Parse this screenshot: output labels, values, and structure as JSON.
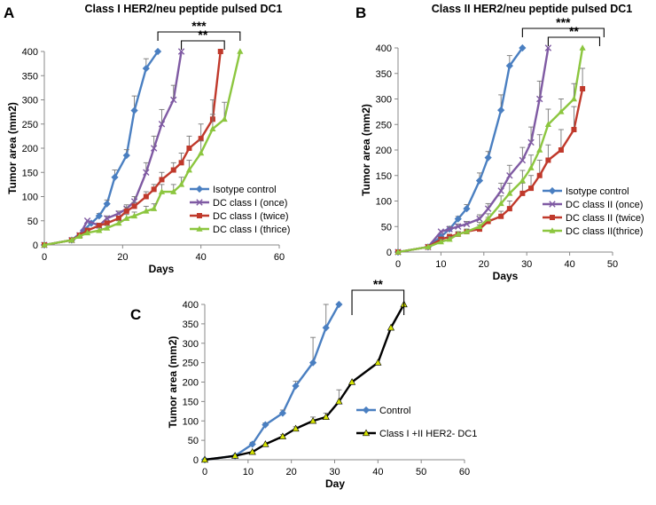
{
  "chart_data": [
    {
      "panel": "A",
      "type": "line",
      "title": "Class I HER2/neu peptide pulsed DC1",
      "xlabel": "Days",
      "ylabel": "Tumor area (mm2)",
      "xlim": [
        0,
        60
      ],
      "ylim": [
        0,
        400
      ],
      "xticks": [
        0,
        20,
        40,
        60
      ],
      "yticks": [
        0,
        50,
        100,
        150,
        200,
        250,
        300,
        350,
        400
      ],
      "legend_position": "right",
      "series": [
        {
          "name": "Isotype control",
          "color": "#4a7fc1",
          "marker": "diamond",
          "x": [
            0,
            7,
            10,
            12,
            14,
            16,
            18,
            21,
            23,
            26,
            29
          ],
          "y": [
            0,
            10,
            30,
            45,
            60,
            85,
            140,
            185,
            278,
            365,
            400
          ],
          "err": [
            0,
            0,
            0,
            0,
            5,
            8,
            15,
            12,
            30,
            20,
            0
          ]
        },
        {
          "name": "DC class I (once)",
          "color": "#7f5aa3",
          "marker": "x",
          "x": [
            0,
            7,
            9,
            11,
            14,
            16,
            19,
            21,
            23,
            26,
            28,
            30,
            33,
            35
          ],
          "y": [
            0,
            10,
            20,
            50,
            40,
            55,
            65,
            75,
            90,
            150,
            200,
            250,
            300,
            400
          ],
          "err": [
            0,
            0,
            0,
            0,
            0,
            5,
            5,
            8,
            10,
            20,
            25,
            30,
            30,
            0
          ]
        },
        {
          "name": "DC class I (twice)",
          "color": "#c0392b",
          "marker": "square",
          "x": [
            0,
            7,
            9,
            11,
            14,
            16,
            19,
            21,
            23,
            26,
            28,
            30,
            33,
            35,
            37,
            40,
            43,
            45
          ],
          "y": [
            0,
            10,
            20,
            30,
            40,
            45,
            55,
            70,
            80,
            100,
            115,
            135,
            155,
            170,
            200,
            220,
            260,
            400
          ],
          "err": [
            0,
            0,
            0,
            5,
            5,
            5,
            5,
            8,
            8,
            10,
            10,
            15,
            15,
            20,
            25,
            30,
            40,
            0
          ]
        },
        {
          "name": "DC class I (thrice)",
          "color": "#8cc63f",
          "marker": "triangle",
          "x": [
            0,
            7,
            9,
            11,
            14,
            16,
            19,
            21,
            23,
            26,
            28,
            30,
            33,
            35,
            37,
            40,
            43,
            46,
            50
          ],
          "y": [
            0,
            10,
            18,
            25,
            30,
            35,
            45,
            55,
            60,
            70,
            75,
            110,
            110,
            125,
            155,
            190,
            240,
            260,
            400
          ],
          "err": [
            0,
            0,
            0,
            0,
            5,
            5,
            5,
            8,
            8,
            10,
            10,
            15,
            15,
            15,
            20,
            25,
            30,
            35,
            0
          ]
        }
      ],
      "significance": [
        {
          "label": "***",
          "x1": 29,
          "x2": 50
        },
        {
          "label": "**",
          "x1": 35,
          "x2": 46
        }
      ]
    },
    {
      "panel": "B",
      "type": "line",
      "title": "Class II HER2/neu peptide pulsed DC1",
      "xlabel": "Days",
      "ylabel": "Tumor area (mm2)",
      "xlim": [
        0,
        50
      ],
      "ylim": [
        0,
        400
      ],
      "xticks": [
        0,
        10,
        20,
        30,
        40,
        50
      ],
      "yticks": [
        0,
        50,
        100,
        150,
        200,
        250,
        300,
        350,
        400
      ],
      "legend_position": "right",
      "series": [
        {
          "name": "Isotype control",
          "color": "#4a7fc1",
          "marker": "diamond",
          "x": [
            0,
            7,
            10,
            12,
            14,
            16,
            19,
            21,
            24,
            26,
            29
          ],
          "y": [
            0,
            10,
            30,
            45,
            65,
            85,
            140,
            185,
            278,
            365,
            400
          ],
          "err": [
            0,
            0,
            5,
            5,
            5,
            8,
            15,
            12,
            30,
            20,
            0
          ]
        },
        {
          "name": "DC class II (once)",
          "color": "#7f5aa3",
          "marker": "x",
          "x": [
            0,
            7,
            10,
            12,
            14,
            16,
            19,
            21,
            24,
            26,
            29,
            31,
            33,
            35
          ],
          "y": [
            0,
            10,
            40,
            45,
            50,
            55,
            65,
            85,
            120,
            150,
            180,
            215,
            300,
            400
          ],
          "err": [
            0,
            0,
            0,
            5,
            5,
            5,
            8,
            10,
            15,
            20,
            25,
            30,
            35,
            0
          ]
        },
        {
          "name": "DC class II (twice)",
          "color": "#c0392b",
          "marker": "square",
          "x": [
            0,
            7,
            10,
            12,
            14,
            16,
            19,
            21,
            24,
            26,
            29,
            31,
            33,
            35,
            38,
            41,
            43
          ],
          "y": [
            0,
            10,
            25,
            30,
            35,
            40,
            45,
            60,
            70,
            85,
            115,
            125,
            150,
            180,
            200,
            240,
            320
          ],
          "err": [
            0,
            0,
            0,
            5,
            5,
            5,
            8,
            8,
            10,
            15,
            20,
            25,
            30,
            30,
            40,
            45,
            40
          ]
        },
        {
          "name": "DC class II(thrice)",
          "color": "#8cc63f",
          "marker": "triangle",
          "x": [
            0,
            7,
            10,
            12,
            14,
            16,
            19,
            21,
            24,
            26,
            29,
            31,
            33,
            35,
            38,
            41,
            43
          ],
          "y": [
            0,
            10,
            20,
            25,
            35,
            40,
            50,
            65,
            95,
            115,
            140,
            165,
            200,
            250,
            275,
            300,
            400
          ],
          "err": [
            0,
            0,
            5,
            5,
            5,
            5,
            8,
            10,
            15,
            20,
            20,
            25,
            30,
            30,
            25,
            30,
            0
          ]
        }
      ],
      "significance": [
        {
          "label": "***",
          "x1": 29,
          "x2": 48
        },
        {
          "label": "**",
          "x1": 35,
          "x2": 47
        }
      ]
    },
    {
      "panel": "C",
      "type": "line",
      "title": "",
      "xlabel": "Day",
      "ylabel": "Tumor area (mm2)",
      "xlim": [
        0,
        60
      ],
      "ylim": [
        0,
        400
      ],
      "xticks": [
        0,
        10,
        20,
        30,
        40,
        50,
        60
      ],
      "yticks": [
        0,
        50,
        100,
        150,
        200,
        250,
        300,
        350,
        400
      ],
      "legend_position": "right",
      "series": [
        {
          "name": "Control",
          "color": "#4a7fc1",
          "marker": "diamond",
          "x": [
            0,
            7,
            11,
            14,
            18,
            21,
            25,
            28,
            31
          ],
          "y": [
            0,
            10,
            40,
            90,
            120,
            190,
            250,
            340,
            400
          ],
          "err": [
            0,
            0,
            5,
            5,
            8,
            12,
            65,
            60,
            0
          ]
        },
        {
          "name": "Class I +II HER2- DC1",
          "color": "#000000",
          "marker": "triangle-yellow",
          "x": [
            0,
            7,
            11,
            14,
            18,
            21,
            25,
            28,
            31,
            34,
            40,
            43,
            46
          ],
          "y": [
            0,
            10,
            20,
            40,
            60,
            80,
            100,
            110,
            150,
            200,
            250,
            340,
            400
          ],
          "err": [
            0,
            0,
            0,
            0,
            5,
            5,
            10,
            10,
            30,
            0,
            0,
            0,
            0
          ]
        }
      ],
      "significance": [
        {
          "label": "**",
          "x1": 34,
          "x2": 46
        }
      ]
    }
  ]
}
